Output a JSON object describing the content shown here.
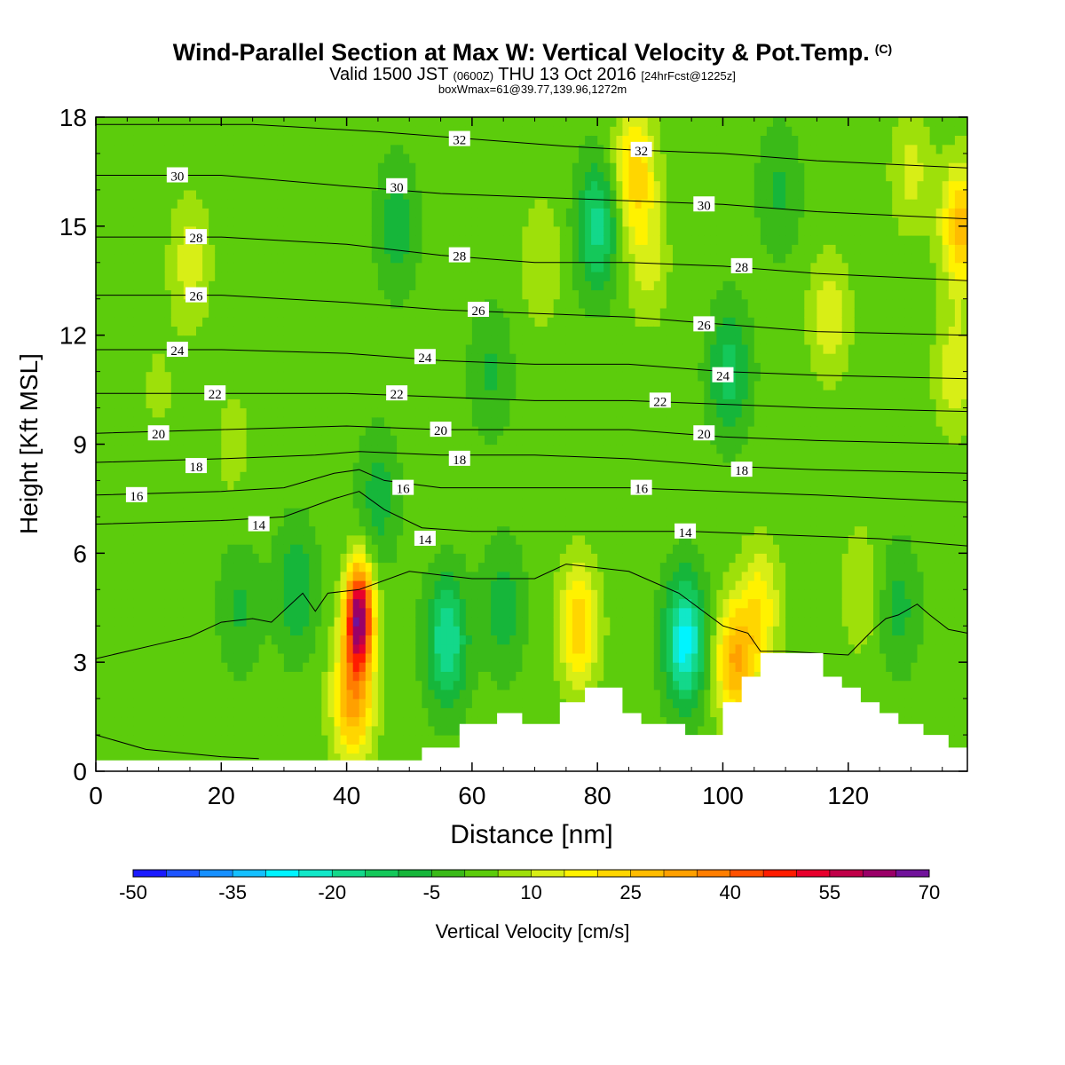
{
  "title": {
    "main": "Wind-Parallel Section at Max W: Vertical Velocity & Pot.Temp.",
    "copyright": "(C)",
    "valid_prefix": "Valid 1500 JST",
    "utc": "(0600Z)",
    "date": "THU 13 Oct 2016",
    "forecast": "[24hrFcst@1225z]",
    "box": "boxWmax=61@39.77,139.96,1272m"
  },
  "chart_data": {
    "type": "heatmap",
    "xlabel": "Distance [nm]",
    "ylabel": "Height [Kft MSL]",
    "xlim": [
      0,
      139
    ],
    "ylim": [
      0,
      18
    ],
    "xticks": [
      0,
      20,
      40,
      60,
      80,
      100,
      120
    ],
    "yticks": [
      0,
      3,
      6,
      9,
      12,
      15,
      18
    ],
    "colorbar": {
      "label": "Vertical Velocity [cm/s]",
      "tick_labels": [
        "-50",
        "-35",
        "-20",
        "-5",
        "10",
        "25",
        "40",
        "55",
        "70"
      ],
      "levels": [
        -50,
        -45,
        -40,
        -35,
        -30,
        -25,
        -20,
        -15,
        -10,
        -5,
        0,
        5,
        10,
        15,
        20,
        25,
        30,
        35,
        40,
        45,
        50,
        55,
        60,
        65,
        70
      ],
      "colors": [
        "#1a1aff",
        "#1e55ff",
        "#1690ff",
        "#15c0ff",
        "#00f4ff",
        "#11e8c8",
        "#13d88a",
        "#14c85a",
        "#16b63a",
        "#3aba18",
        "#5ccc0c",
        "#9ee00a",
        "#d8ee16",
        "#fff200",
        "#ffd600",
        "#ffbc00",
        "#ffa000",
        "#ff7e00",
        "#ff5000",
        "#ff1c00",
        "#e8002c",
        "#c00048",
        "#9a0068",
        "#70129a"
      ]
    },
    "wvel_features": [
      {
        "x": 42,
        "z": 4.3,
        "w": 62
      },
      {
        "x": 41,
        "z": 2.0,
        "w": 30
      },
      {
        "x": 56,
        "z": 3.6,
        "w": -22
      },
      {
        "x": 65,
        "z": 4.5,
        "w": -10
      },
      {
        "x": 77,
        "z": 4.0,
        "w": 22
      },
      {
        "x": 86,
        "z": 16.5,
        "w": 22
      },
      {
        "x": 88,
        "z": 14.0,
        "w": 10
      },
      {
        "x": 80,
        "z": 15.0,
        "w": -20
      },
      {
        "x": 94,
        "z": 3.6,
        "w": -30
      },
      {
        "x": 102,
        "z": 3.0,
        "w": 28
      },
      {
        "x": 106,
        "z": 4.5,
        "w": 16
      },
      {
        "x": 117,
        "z": 12.5,
        "w": 12
      },
      {
        "x": 101,
        "z": 11.0,
        "w": -15
      },
      {
        "x": 109,
        "z": 16.0,
        "w": -8
      },
      {
        "x": 138,
        "z": 15.0,
        "w": 25
      },
      {
        "x": 130,
        "z": 16.5,
        "w": 10
      },
      {
        "x": 137,
        "z": 11.0,
        "w": 12
      },
      {
        "x": 15,
        "z": 14.0,
        "w": 11
      },
      {
        "x": 22,
        "z": 9.0,
        "w": 5
      },
      {
        "x": 48,
        "z": 15.0,
        "w": -10
      },
      {
        "x": 63,
        "z": 11.0,
        "w": -8
      },
      {
        "x": 71,
        "z": 14.0,
        "w": 8
      },
      {
        "x": 45,
        "z": 7.5,
        "w": -10
      },
      {
        "x": 32,
        "z": 5.0,
        "w": -12
      },
      {
        "x": 23,
        "z": 4.5,
        "w": -8
      },
      {
        "x": 128,
        "z": 4.5,
        "w": -9
      },
      {
        "x": 122,
        "z": 5.0,
        "w": 8
      },
      {
        "x": 10,
        "z": 10.5,
        "w": 4
      }
    ],
    "isentropes": [
      {
        "label": "14",
        "pts": [
          [
            0,
            6.8
          ],
          [
            20,
            6.9
          ],
          [
            30,
            7.0
          ],
          [
            38,
            7.5
          ],
          [
            42,
            7.7
          ],
          [
            46,
            7.2
          ],
          [
            52,
            6.7
          ],
          [
            60,
            6.6
          ],
          [
            70,
            6.6
          ],
          [
            80,
            6.6
          ],
          [
            95,
            6.6
          ],
          [
            110,
            6.5
          ],
          [
            125,
            6.4
          ],
          [
            139,
            6.2
          ]
        ]
      },
      {
        "label": "16",
        "pts": [
          [
            0,
            7.6
          ],
          [
            20,
            7.7
          ],
          [
            30,
            7.8
          ],
          [
            38,
            8.2
          ],
          [
            42,
            8.3
          ],
          [
            46,
            8.0
          ],
          [
            55,
            7.8
          ],
          [
            70,
            7.8
          ],
          [
            85,
            7.8
          ],
          [
            100,
            7.7
          ],
          [
            115,
            7.6
          ],
          [
            139,
            7.4
          ]
        ]
      },
      {
        "label": "18",
        "pts": [
          [
            0,
            8.5
          ],
          [
            20,
            8.6
          ],
          [
            35,
            8.7
          ],
          [
            42,
            8.8
          ],
          [
            55,
            8.7
          ],
          [
            70,
            8.7
          ],
          [
            85,
            8.6
          ],
          [
            100,
            8.4
          ],
          [
            115,
            8.3
          ],
          [
            139,
            8.2
          ]
        ]
      },
      {
        "label": "20",
        "pts": [
          [
            0,
            9.3
          ],
          [
            20,
            9.4
          ],
          [
            40,
            9.5
          ],
          [
            55,
            9.4
          ],
          [
            70,
            9.4
          ],
          [
            85,
            9.4
          ],
          [
            100,
            9.2
          ],
          [
            115,
            9.1
          ],
          [
            139,
            9.0
          ]
        ]
      },
      {
        "label": "22",
        "pts": [
          [
            0,
            10.4
          ],
          [
            20,
            10.4
          ],
          [
            40,
            10.4
          ],
          [
            55,
            10.3
          ],
          [
            70,
            10.2
          ],
          [
            85,
            10.2
          ],
          [
            100,
            10.1
          ],
          [
            115,
            10.0
          ],
          [
            139,
            9.9
          ]
        ]
      },
      {
        "label": "24",
        "pts": [
          [
            0,
            11.6
          ],
          [
            20,
            11.6
          ],
          [
            40,
            11.5
          ],
          [
            55,
            11.3
          ],
          [
            70,
            11.2
          ],
          [
            85,
            11.2
          ],
          [
            100,
            11.0
          ],
          [
            115,
            10.9
          ],
          [
            139,
            10.8
          ]
        ]
      },
      {
        "label": "26",
        "pts": [
          [
            0,
            13.1
          ],
          [
            20,
            13.1
          ],
          [
            40,
            12.9
          ],
          [
            55,
            12.7
          ],
          [
            70,
            12.6
          ],
          [
            85,
            12.5
          ],
          [
            100,
            12.3
          ],
          [
            115,
            12.1
          ],
          [
            139,
            12.0
          ]
        ]
      },
      {
        "label": "28",
        "pts": [
          [
            0,
            14.7
          ],
          [
            20,
            14.7
          ],
          [
            40,
            14.5
          ],
          [
            55,
            14.2
          ],
          [
            70,
            14.0
          ],
          [
            85,
            14.0
          ],
          [
            100,
            13.9
          ],
          [
            115,
            13.7
          ],
          [
            139,
            13.5
          ]
        ]
      },
      {
        "label": "30",
        "pts": [
          [
            0,
            16.4
          ],
          [
            20,
            16.4
          ],
          [
            40,
            16.1
          ],
          [
            55,
            15.9
          ],
          [
            70,
            15.8
          ],
          [
            85,
            15.7
          ],
          [
            100,
            15.6
          ],
          [
            115,
            15.4
          ],
          [
            139,
            15.2
          ]
        ]
      },
      {
        "label": "32",
        "pts": [
          [
            0,
            17.8
          ],
          [
            25,
            17.8
          ],
          [
            45,
            17.6
          ],
          [
            60,
            17.4
          ],
          [
            75,
            17.2
          ],
          [
            85,
            17.1
          ],
          [
            100,
            17.0
          ],
          [
            115,
            16.8
          ],
          [
            139,
            16.6
          ]
        ]
      }
    ],
    "isentrope_labels": [
      {
        "text": "30",
        "x": 13,
        "z": 16.4
      },
      {
        "text": "28",
        "x": 16,
        "z": 14.7
      },
      {
        "text": "26",
        "x": 16,
        "z": 13.1
      },
      {
        "text": "24",
        "x": 13,
        "z": 11.6
      },
      {
        "text": "22",
        "x": 19,
        "z": 10.4
      },
      {
        "text": "20",
        "x": 10,
        "z": 9.3
      },
      {
        "text": "18",
        "x": 16,
        "z": 8.4
      },
      {
        "text": "16",
        "x": 6.5,
        "z": 7.6
      },
      {
        "text": "14",
        "x": 26,
        "z": 6.8
      },
      {
        "text": "32",
        "x": 58,
        "z": 17.4
      },
      {
        "text": "30",
        "x": 48,
        "z": 16.1
      },
      {
        "text": "28",
        "x": 58,
        "z": 14.2
      },
      {
        "text": "26",
        "x": 61,
        "z": 12.7
      },
      {
        "text": "24",
        "x": 52.5,
        "z": 11.4
      },
      {
        "text": "22",
        "x": 48,
        "z": 10.4
      },
      {
        "text": "20",
        "x": 55,
        "z": 9.4
      },
      {
        "text": "18",
        "x": 58,
        "z": 8.6
      },
      {
        "text": "16",
        "x": 49,
        "z": 7.8
      },
      {
        "text": "14",
        "x": 52.5,
        "z": 6.4
      },
      {
        "text": "32",
        "x": 87,
        "z": 17.1
      },
      {
        "text": "30",
        "x": 97,
        "z": 15.6
      },
      {
        "text": "28",
        "x": 103,
        "z": 13.9
      },
      {
        "text": "26",
        "x": 97,
        "z": 12.3
      },
      {
        "text": "24",
        "x": 100,
        "z": 10.9
      },
      {
        "text": "22",
        "x": 90,
        "z": 10.2
      },
      {
        "text": "20",
        "x": 97,
        "z": 9.3
      },
      {
        "text": "18",
        "x": 103,
        "z": 8.3
      },
      {
        "text": "16",
        "x": 87,
        "z": 7.8
      },
      {
        "text": "14",
        "x": 94,
        "z": 6.6
      }
    ],
    "lower_contour": [
      [
        0,
        3.1
      ],
      [
        10,
        3.5
      ],
      [
        15,
        3.7
      ],
      [
        20,
        4.1
      ],
      [
        25,
        4.2
      ],
      [
        28,
        4.1
      ],
      [
        33,
        4.9
      ],
      [
        35,
        4.4
      ],
      [
        37,
        4.9
      ],
      [
        42,
        5.0
      ],
      [
        50,
        5.5
      ],
      [
        60,
        5.3
      ],
      [
        70,
        5.3
      ],
      [
        75,
        5.7
      ],
      [
        85,
        5.5
      ],
      [
        93,
        4.9
      ],
      [
        100,
        4.0
      ],
      [
        104,
        3.8
      ],
      [
        106,
        3.3
      ],
      [
        110,
        3.3
      ],
      [
        120,
        3.2
      ],
      [
        124,
        3.9
      ],
      [
        126,
        4.2
      ],
      [
        128,
        4.3
      ],
      [
        131,
        4.6
      ],
      [
        133,
        4.3
      ],
      [
        136,
        3.9
      ],
      [
        139,
        3.8
      ]
    ],
    "low_contour_left": [
      [
        0,
        1.0
      ],
      [
        8,
        0.6
      ],
      [
        20,
        0.4
      ],
      [
        26,
        0.35
      ]
    ],
    "terrain_steps": [
      [
        0,
        0.3
      ],
      [
        52,
        0.3
      ],
      [
        52,
        0.65
      ],
      [
        58,
        0.65
      ],
      [
        58,
        1.3
      ],
      [
        64,
        1.3
      ],
      [
        64,
        1.6
      ],
      [
        68,
        1.6
      ],
      [
        68,
        1.3
      ],
      [
        74,
        1.3
      ],
      [
        74,
        1.9
      ],
      [
        78,
        1.9
      ],
      [
        78,
        2.3
      ],
      [
        84,
        2.3
      ],
      [
        84,
        1.6
      ],
      [
        87,
        1.6
      ],
      [
        87,
        1.3
      ],
      [
        94,
        1.3
      ],
      [
        94,
        1.0
      ],
      [
        100,
        1.0
      ],
      [
        100,
        1.9
      ],
      [
        103,
        1.9
      ],
      [
        103,
        2.6
      ],
      [
        106,
        2.6
      ],
      [
        106,
        3.25
      ],
      [
        116,
        3.25
      ],
      [
        116,
        2.6
      ],
      [
        119,
        2.6
      ],
      [
        119,
        2.3
      ],
      [
        122,
        2.3
      ],
      [
        122,
        1.9
      ],
      [
        125,
        1.9
      ],
      [
        125,
        1.6
      ],
      [
        128,
        1.6
      ],
      [
        128,
        1.3
      ],
      [
        132,
        1.3
      ],
      [
        132,
        1.0
      ],
      [
        136,
        1.0
      ],
      [
        136,
        0.65
      ],
      [
        139,
        0.65
      ]
    ]
  }
}
